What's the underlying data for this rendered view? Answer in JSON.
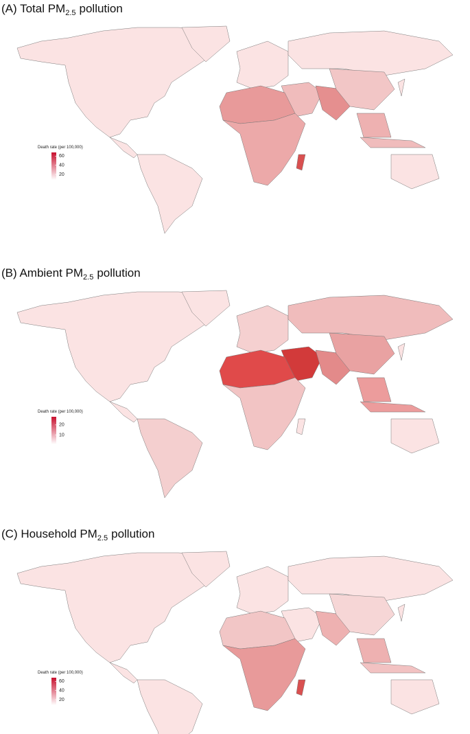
{
  "maps": [
    {
      "title": {
        "prefix": "(A) Total PM",
        "subscript": "2.5",
        "suffix": "pollution"
      },
      "legend": {
        "title": "Death rate (per 100,000)",
        "range": [
          8,
          68
        ],
        "ticks": [
          20,
          40,
          60
        ]
      }
    },
    {
      "title": {
        "prefix": "(B) Ambient PM",
        "subscript": "2.5",
        "suffix": "pollution"
      },
      "legend": {
        "title": "Death rate (per 100,000)",
        "range": [
          1,
          28
        ],
        "ticks": [
          10,
          20
        ]
      }
    },
    {
      "title": {
        "prefix": "(C) Household PM",
        "subscript": "2.5",
        "suffix": "pollution"
      },
      "legend": {
        "title": "Death rate (per 100,000)",
        "range": [
          8,
          68
        ],
        "ticks": [
          20,
          40,
          60
        ]
      }
    }
  ]
}
